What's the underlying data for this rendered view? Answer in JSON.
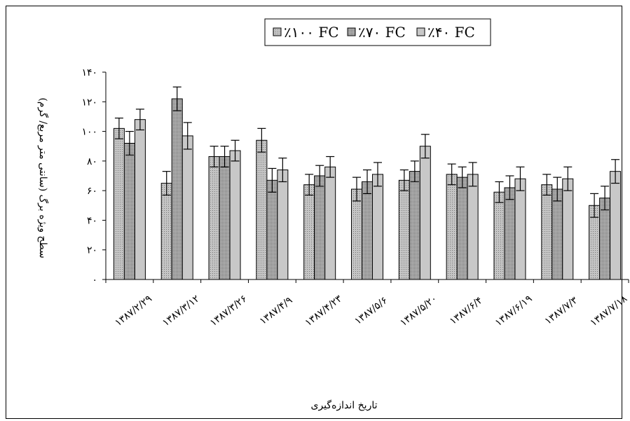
{
  "chart_data": {
    "type": "bar",
    "xlabel": "تاریخ اندازه‌گیری",
    "ylabel": "سطح ویژه برگ (سانتی متر مربع/ گرم)",
    "ylim": [
      0,
      140
    ],
    "yticks": [
      "۰",
      "۲۰",
      "۴۰",
      "۶۰",
      "۸۰",
      "۱۰۰",
      "۱۲۰",
      "۱۴۰"
    ],
    "ytick_values": [
      0,
      20,
      40,
      60,
      80,
      100,
      120,
      140
    ],
    "categories": [
      "۱۳۸۷/۲/۲۹",
      "۱۳۸۷/۳/۱۲",
      "۱۳۸۷/۳/۲۶",
      "۱۳۸۷/۴/۹",
      "۱۳۸۷/۴/۲۳",
      "۱۳۸۷/۵/۶",
      "۱۳۸۷/۵/۲۰",
      "۱۳۸۷/۶/۴",
      "۱۳۸۷/۶/۱۹",
      "۱۳۸۷/۷/۳",
      "۱۳۸۷/۷/۱۸"
    ],
    "grid": false,
    "legend": "top-center",
    "series": [
      {
        "name": "٪۱۰۰ FC",
        "pattern": "dotted",
        "color": "#b8b8b8",
        "values": [
          102,
          65,
          83,
          94,
          64,
          61,
          67,
          71,
          59,
          64,
          50
        ],
        "errors": [
          7,
          8,
          7,
          8,
          7,
          8,
          7,
          7,
          7,
          7,
          8
        ]
      },
      {
        "name": "٪۷۰ FC",
        "pattern": "dense-dotted",
        "color": "#a8a8a8",
        "values": [
          92,
          122,
          83,
          67,
          70,
          66,
          73,
          69,
          62,
          61,
          55
        ],
        "errors": [
          8,
          8,
          7,
          8,
          7,
          8,
          7,
          7,
          8,
          8,
          8
        ]
      },
      {
        "name": "٪۴۰ FC",
        "pattern": "solid",
        "color": "#c8c8c8",
        "values": [
          108,
          97,
          87,
          74,
          76,
          71,
          90,
          71,
          68,
          68,
          73
        ],
        "errors": [
          7,
          9,
          7,
          8,
          7,
          8,
          8,
          8,
          8,
          8,
          8
        ]
      }
    ]
  }
}
